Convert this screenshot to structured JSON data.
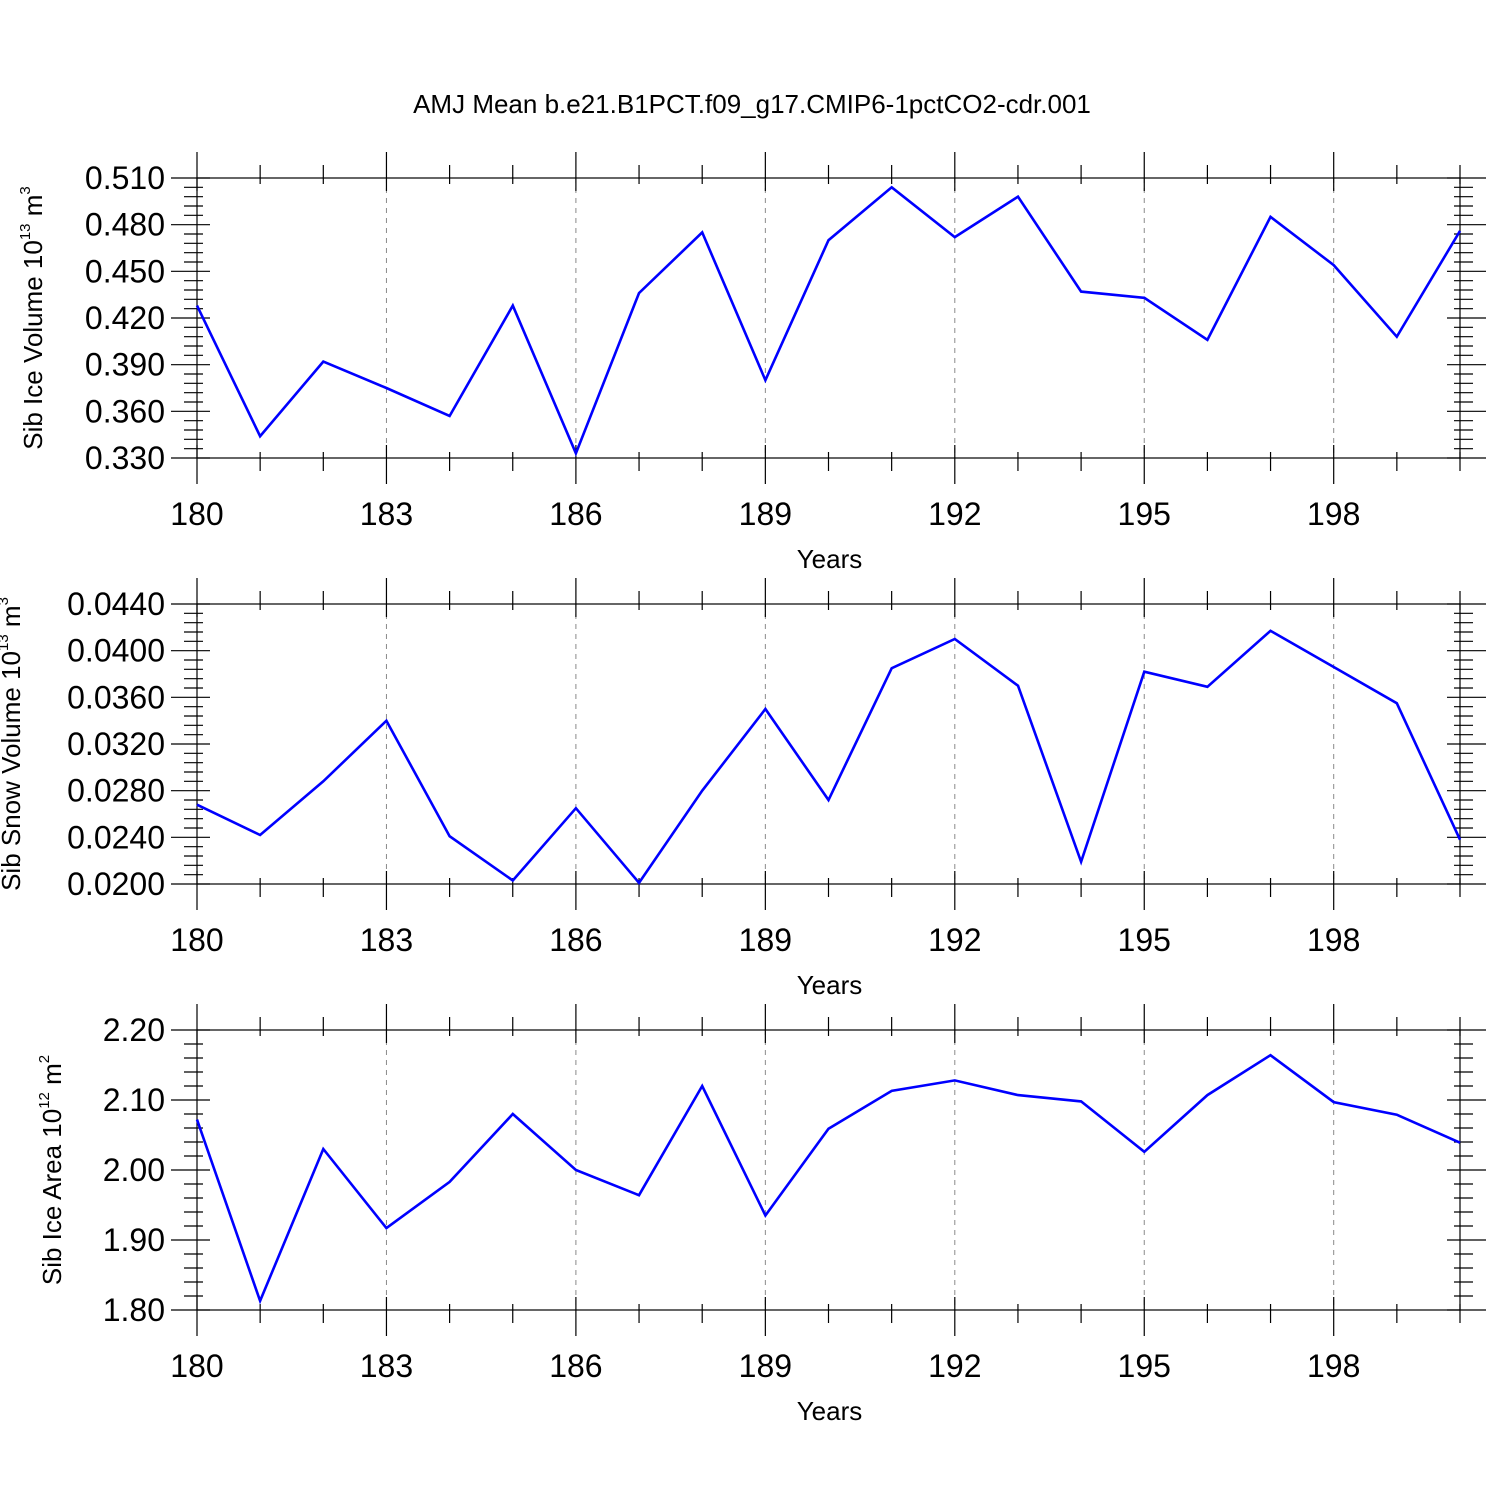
{
  "title": "AMJ Mean b.e21.B1PCT.f09_g17.CMIP6-1pctCO2-cdr.001",
  "colors": {
    "series": "#0000ff",
    "frame": "#000000",
    "grid": "#8a8a8a"
  },
  "chart_data": [
    {
      "type": "line",
      "ylabel": {
        "text": "Sib Ice Volume 10",
        "exponent": "13",
        "unit_text": " m",
        "unit_exponent": "3"
      },
      "xlabel": "Years",
      "xlim": [
        180,
        200
      ],
      "ylim": [
        0.33,
        0.51
      ],
      "xticks": [
        "180",
        "183",
        "186",
        "189",
        "192",
        "195",
        "198"
      ],
      "xtick_values": [
        180,
        183,
        186,
        189,
        192,
        195,
        198
      ],
      "yticks": [
        "0.330",
        "0.360",
        "0.390",
        "0.420",
        "0.450",
        "0.480",
        "0.510"
      ],
      "ytick_values": [
        0.33,
        0.36,
        0.39,
        0.42,
        0.45,
        0.48,
        0.51
      ],
      "grid": "vertical dashed at major x ticks",
      "x": [
        180,
        181,
        182,
        183,
        184,
        185,
        186,
        187,
        188,
        189,
        190,
        191,
        192,
        193,
        194,
        195,
        196,
        197,
        198,
        199,
        200
      ],
      "values": [
        0.428,
        0.344,
        0.392,
        0.375,
        0.357,
        0.428,
        0.333,
        0.436,
        0.475,
        0.38,
        0.47,
        0.504,
        0.472,
        0.498,
        0.437,
        0.433,
        0.406,
        0.485,
        0.454,
        0.408,
        0.476
      ]
    },
    {
      "type": "line",
      "ylabel": {
        "text": "Sib Snow Volume 10",
        "exponent": "13",
        "unit_text": " m",
        "unit_exponent": "3"
      },
      "xlabel": "Years",
      "xlim": [
        180,
        200
      ],
      "ylim": [
        0.02,
        0.044
      ],
      "xticks": [
        "180",
        "183",
        "186",
        "189",
        "192",
        "195",
        "198"
      ],
      "xtick_values": [
        180,
        183,
        186,
        189,
        192,
        195,
        198
      ],
      "yticks": [
        "0.0200",
        "0.0240",
        "0.0280",
        "0.0320",
        "0.0360",
        "0.0400",
        "0.0440"
      ],
      "ytick_values": [
        0.02,
        0.024,
        0.028,
        0.032,
        0.036,
        0.04,
        0.044
      ],
      "grid": "vertical dashed at major x ticks",
      "x": [
        180,
        181,
        182,
        183,
        184,
        185,
        186,
        187,
        188,
        189,
        190,
        191,
        192,
        193,
        194,
        195,
        196,
        197,
        198,
        199,
        200
      ],
      "values": [
        0.0268,
        0.0242,
        0.0288,
        0.034,
        0.0241,
        0.0203,
        0.0265,
        0.0201,
        0.028,
        0.035,
        0.0272,
        0.0385,
        0.041,
        0.037,
        0.0219,
        0.0382,
        0.0369,
        0.0417,
        0.0386,
        0.0355,
        0.0238
      ]
    },
    {
      "type": "line",
      "ylabel": {
        "text": "Sib Ice Area 10",
        "exponent": "12",
        "unit_text": " m",
        "unit_exponent": "2"
      },
      "xlabel": "Years",
      "xlim": [
        180,
        200
      ],
      "ylim": [
        1.8,
        2.2
      ],
      "xticks": [
        "180",
        "183",
        "186",
        "189",
        "192",
        "195",
        "198"
      ],
      "xtick_values": [
        180,
        183,
        186,
        189,
        192,
        195,
        198
      ],
      "yticks": [
        "1.80",
        "1.90",
        "2.00",
        "2.10",
        "2.20"
      ],
      "ytick_values": [
        1.8,
        1.9,
        2.0,
        2.1,
        2.2
      ],
      "grid": "vertical dashed at major x ticks",
      "x": [
        180,
        181,
        182,
        183,
        184,
        185,
        186,
        187,
        188,
        189,
        190,
        191,
        192,
        193,
        194,
        195,
        196,
        197,
        198,
        199,
        200
      ],
      "values": [
        2.072,
        1.813,
        2.03,
        1.917,
        1.983,
        2.08,
        2.0,
        1.964,
        2.12,
        1.935,
        2.059,
        2.113,
        2.128,
        2.107,
        2.098,
        2.026,
        2.107,
        2.164,
        2.097,
        2.079,
        2.039
      ]
    }
  ]
}
